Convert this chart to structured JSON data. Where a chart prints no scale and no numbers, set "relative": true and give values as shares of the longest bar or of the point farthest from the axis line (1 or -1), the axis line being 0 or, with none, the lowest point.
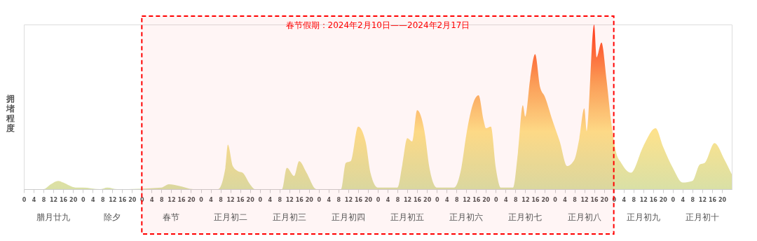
{
  "chart_data": {
    "type": "area",
    "ylabel": "拥堵程度",
    "relative": true,
    "grid": false,
    "x": [
      "2024-02-08T00:00",
      "2024-02-08T08:00",
      "2024-02-08T11:00",
      "2024-02-08T14:00",
      "2024-02-08T16:00",
      "2024-02-08T21:00",
      "2024-02-09T00:00",
      "2024-02-09T07:00",
      "2024-02-09T10:00",
      "2024-02-09T14:00",
      "2024-02-10T08:00",
      "2024-02-10T11:00",
      "2024-02-10T15:00",
      "2024-02-10T21:00",
      "2024-02-11T07:00",
      "2024-02-11T10:00",
      "2024-02-11T11:00",
      "2024-02-11T13:00",
      "2024-02-11T15:00",
      "2024-02-11T17:00",
      "2024-02-11T20:00",
      "2024-02-11T22:00",
      "2024-02-12T09:00",
      "2024-02-12T11:00",
      "2024-02-12T14:00",
      "2024-02-12T16:00",
      "2024-02-12T19:00",
      "2024-02-12T23:00",
      "2024-02-13T09:00",
      "2024-02-13T11:00",
      "2024-02-13T13:00",
      "2024-02-13T16:00",
      "2024-02-13T19:00",
      "2024-02-13T21:00",
      "2024-02-14T00:00",
      "2024-02-14T08:00",
      "2024-02-14T10:00",
      "2024-02-14T12:00",
      "2024-02-14T14:00",
      "2024-02-14T16:00",
      "2024-02-14T19:00",
      "2024-02-14T21:00",
      "2024-02-15T00:00",
      "2024-02-15T07:00",
      "2024-02-15T10:00",
      "2024-02-15T12:00",
      "2024-02-15T15:00",
      "2024-02-15T17:00",
      "2024-02-15T19:00",
      "2024-02-15T20:00",
      "2024-02-15T22:00",
      "2024-02-16T00:00",
      "2024-02-16T02:00",
      "2024-02-16T07:00",
      "2024-02-16T09:00",
      "2024-02-16T11:00",
      "2024-02-16T12:00",
      "2024-02-16T14:00",
      "2024-02-16T16:00",
      "2024-02-16T18:00",
      "2024-02-16T20:00",
      "2024-02-16T23:00",
      "2024-02-17T02:00",
      "2024-02-17T05:00",
      "2024-02-17T08:00",
      "2024-02-17T10:00",
      "2024-02-17T12:00",
      "2024-02-17T13:00",
      "2024-02-17T16:00",
      "2024-02-17T17:00",
      "2024-02-17T19:00",
      "2024-02-17T21:00",
      "2024-02-17T23:00",
      "2024-02-18T01:00",
      "2024-02-18T03:00",
      "2024-02-18T07:00",
      "2024-02-18T12:00",
      "2024-02-18T17:00",
      "2024-02-18T20:00",
      "2024-02-19T00:00",
      "2024-02-19T04:00",
      "2024-02-19T08:00",
      "2024-02-19T11:00",
      "2024-02-19T13:00",
      "2024-02-19T17:00",
      "2024-02-19T21:00",
      "2024-02-20T00:00"
    ],
    "series": [
      {
        "values": [
          0,
          0,
          0.03,
          0.05,
          0.04,
          0.01,
          0.01,
          0,
          0.01,
          0,
          0.01,
          0.03,
          0.02,
          0,
          0,
          0.13,
          0.27,
          0.14,
          0.11,
          0.1,
          0.03,
          0,
          0,
          0.13,
          0.08,
          0.17,
          0.1,
          0,
          0,
          0.16,
          0.17,
          0.38,
          0.29,
          0.1,
          0.01,
          0.01,
          0.15,
          0.31,
          0.29,
          0.48,
          0.35,
          0.13,
          0.01,
          0.01,
          0.13,
          0.33,
          0.53,
          0.57,
          0.42,
          0.37,
          0.38,
          0.13,
          0.01,
          0.01,
          0.22,
          0.51,
          0.44,
          0.67,
          0.82,
          0.62,
          0.56,
          0.42,
          0.29,
          0.14,
          0.18,
          0.31,
          0.49,
          0.35,
          1.0,
          0.8,
          0.89,
          0.67,
          0.4,
          0.22,
          0.16,
          0.1,
          0.26,
          0.37,
          0.26,
          0.13,
          0.04,
          0.05,
          0.15,
          0.16,
          0.28,
          0.18,
          0.09
        ]
      }
    ],
    "xlim": [
      "2024-02-08T00:00",
      "2024-02-20T00:00"
    ],
    "xticks": [
      {
        "value": "2024-02-08T00:00",
        "label": "0"
      },
      {
        "value": "2024-02-08T04:00",
        "label": "4"
      },
      {
        "value": "2024-02-08T08:00",
        "label": "8"
      },
      {
        "value": "2024-02-08T12:00",
        "label": "12"
      },
      {
        "value": "2024-02-08T16:00",
        "label": "16"
      },
      {
        "value": "2024-02-08T20:00",
        "label": "20"
      },
      {
        "value": "2024-02-09T00:00",
        "label": "0"
      },
      {
        "value": "2024-02-09T04:00",
        "label": "4"
      },
      {
        "value": "2024-02-09T08:00",
        "label": "8"
      },
      {
        "value": "2024-02-09T12:00",
        "label": "12"
      },
      {
        "value": "2024-02-09T16:00",
        "label": "16"
      },
      {
        "value": "2024-02-09T20:00",
        "label": "20"
      },
      {
        "value": "2024-02-10T00:00",
        "label": "0"
      },
      {
        "value": "2024-02-10T04:00",
        "label": "4"
      },
      {
        "value": "2024-02-10T08:00",
        "label": "8"
      },
      {
        "value": "2024-02-10T12:00",
        "label": "12"
      },
      {
        "value": "2024-02-10T16:00",
        "label": "16"
      },
      {
        "value": "2024-02-10T20:00",
        "label": "20"
      },
      {
        "value": "2024-02-11T00:00",
        "label": "0"
      },
      {
        "value": "2024-02-11T04:00",
        "label": "4"
      },
      {
        "value": "2024-02-11T08:00",
        "label": "8"
      },
      {
        "value": "2024-02-11T12:00",
        "label": "12"
      },
      {
        "value": "2024-02-11T16:00",
        "label": "16"
      },
      {
        "value": "2024-02-11T20:00",
        "label": "20"
      },
      {
        "value": "2024-02-12T00:00",
        "label": "0"
      },
      {
        "value": "2024-02-12T04:00",
        "label": "4"
      },
      {
        "value": "2024-02-12T08:00",
        "label": "8"
      },
      {
        "value": "2024-02-12T12:00",
        "label": "12"
      },
      {
        "value": "2024-02-12T16:00",
        "label": "16"
      },
      {
        "value": "2024-02-12T20:00",
        "label": "20"
      },
      {
        "value": "2024-02-13T00:00",
        "label": "0"
      },
      {
        "value": "2024-02-13T04:00",
        "label": "4"
      },
      {
        "value": "2024-02-13T08:00",
        "label": "8"
      },
      {
        "value": "2024-02-13T12:00",
        "label": "12"
      },
      {
        "value": "2024-02-13T16:00",
        "label": "16"
      },
      {
        "value": "2024-02-13T20:00",
        "label": "20"
      },
      {
        "value": "2024-02-14T00:00",
        "label": "0"
      },
      {
        "value": "2024-02-14T04:00",
        "label": "4"
      },
      {
        "value": "2024-02-14T08:00",
        "label": "8"
      },
      {
        "value": "2024-02-14T12:00",
        "label": "12"
      },
      {
        "value": "2024-02-14T16:00",
        "label": "16"
      },
      {
        "value": "2024-02-14T20:00",
        "label": "20"
      },
      {
        "value": "2024-02-15T00:00",
        "label": "0"
      },
      {
        "value": "2024-02-15T04:00",
        "label": "4"
      },
      {
        "value": "2024-02-15T08:00",
        "label": "8"
      },
      {
        "value": "2024-02-15T12:00",
        "label": "12"
      },
      {
        "value": "2024-02-15T16:00",
        "label": "16"
      },
      {
        "value": "2024-02-15T20:00",
        "label": "20"
      },
      {
        "value": "2024-02-16T00:00",
        "label": "0"
      },
      {
        "value": "2024-02-16T04:00",
        "label": "4"
      },
      {
        "value": "2024-02-16T08:00",
        "label": "8"
      },
      {
        "value": "2024-02-16T12:00",
        "label": "12"
      },
      {
        "value": "2024-02-16T16:00",
        "label": "16"
      },
      {
        "value": "2024-02-16T20:00",
        "label": "20"
      },
      {
        "value": "2024-02-17T00:00",
        "label": "0"
      },
      {
        "value": "2024-02-17T04:00",
        "label": "4"
      },
      {
        "value": "2024-02-17T08:00",
        "label": "8"
      },
      {
        "value": "2024-02-17T12:00",
        "label": "12"
      },
      {
        "value": "2024-02-17T16:00",
        "label": "16"
      },
      {
        "value": "2024-02-17T20:00",
        "label": "20"
      },
      {
        "value": "2024-02-18T00:00",
        "label": "0"
      },
      {
        "value": "2024-02-18T04:00",
        "label": "4"
      },
      {
        "value": "2024-02-18T08:00",
        "label": "8"
      },
      {
        "value": "2024-02-18T12:00",
        "label": "12"
      },
      {
        "value": "2024-02-18T16:00",
        "label": "16"
      },
      {
        "value": "2024-02-18T20:00",
        "label": "20"
      },
      {
        "value": "2024-02-19T00:00",
        "label": "0"
      },
      {
        "value": "2024-02-19T04:00",
        "label": "4"
      },
      {
        "value": "2024-02-19T08:00",
        "label": "8"
      },
      {
        "value": "2024-02-19T12:00",
        "label": "12"
      },
      {
        "value": "2024-02-19T16:00",
        "label": "16"
      },
      {
        "value": "2024-02-19T20:00",
        "label": "20"
      }
    ],
    "annotations": [
      "腊月廿九",
      "除夕",
      "春节",
      "正月初二",
      "正月初三",
      "正月初四",
      "正月初五",
      "正月初六",
      "正月初七",
      "正月初八",
      "正月初九",
      "正月初十"
    ],
    "bands": [
      {
        "axis": "x",
        "from": "2024-02-10T00:00",
        "to": "2024-02-18T00:00",
        "label": "春节假期：2024年2月10日——2024年2月17日",
        "color": "#ff0000"
      }
    ]
  }
}
